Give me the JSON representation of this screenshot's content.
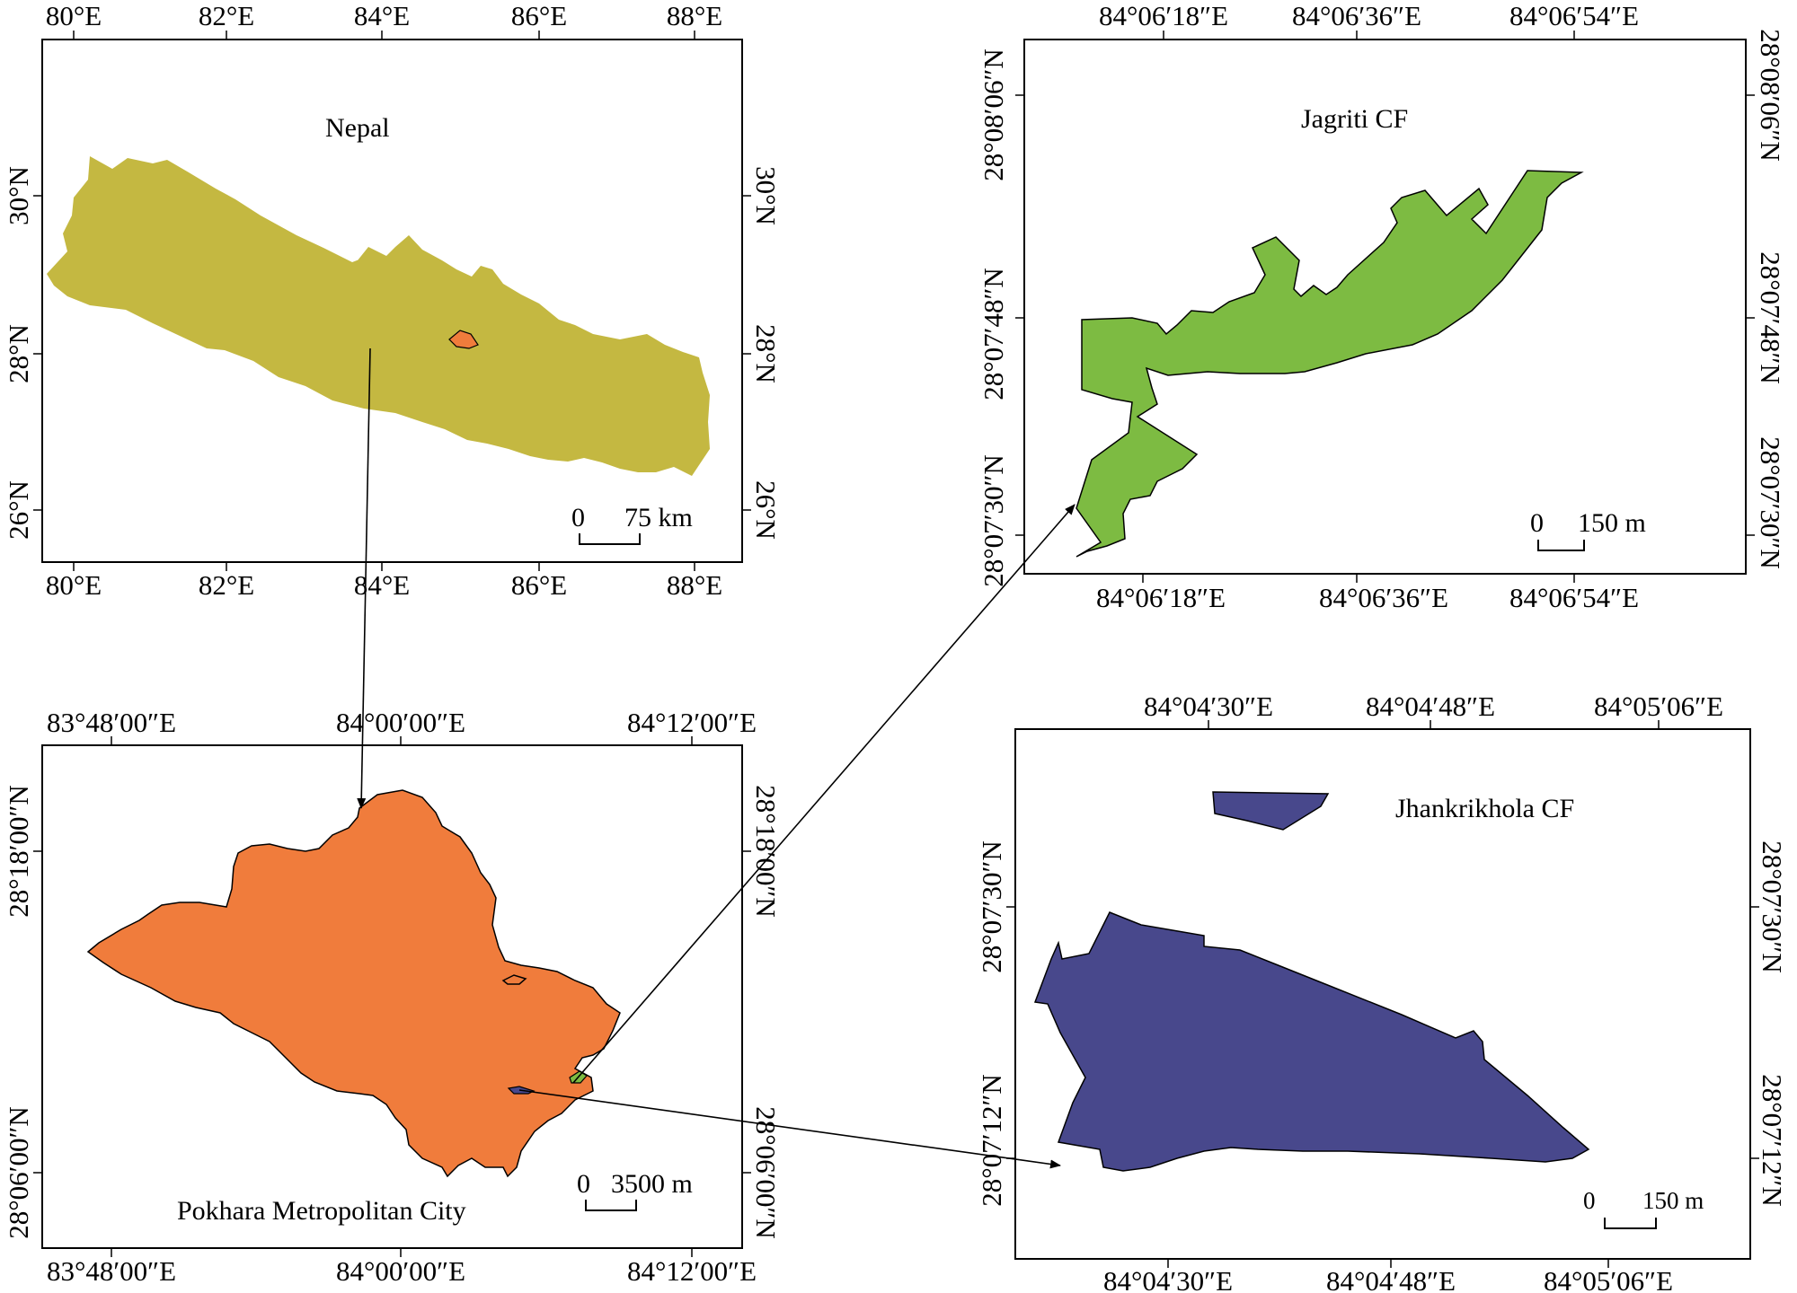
{
  "nepal": {
    "title": "Nepal",
    "x_ticks": [
      "80°E",
      "82°E",
      "84°E",
      "86°E",
      "88°E"
    ],
    "y_ticks": [
      "30°N",
      "28°N",
      "26°N"
    ],
    "scale": {
      "zero": "0",
      "value": "75 km"
    },
    "fill_color": "#C4B841"
  },
  "pokhara": {
    "title": "Pokhara Metropolitan City",
    "x_ticks": [
      "83°48′00″E",
      "84°00′00″E",
      "84°12′00″E"
    ],
    "y_ticks": [
      "28°18′00″N",
      "28°06′00″N"
    ],
    "scale": {
      "zero": "0",
      "value": "3500 m"
    },
    "fill_color": "#F07C3C"
  },
  "jagriti": {
    "title": "Jagriti CF",
    "x_ticks": [
      "84°06′18″E",
      "84°06′36″E",
      "84°06′54″E"
    ],
    "y_ticks": [
      "28°08′06″N",
      "28°07′48″N",
      "28°07′30″N"
    ],
    "scale": {
      "zero": "0",
      "value": "150 m"
    },
    "fill_color": "#7DBB42"
  },
  "jhankrikhola": {
    "title": "Jhankrikhola CF",
    "x_ticks": [
      "84°04′30″E",
      "84°04′48″E",
      "84°05′06″E"
    ],
    "y_ticks": [
      "28°07′30″N",
      "28°07′12″N"
    ],
    "scale": {
      "zero": "0",
      "value": "150 m"
    },
    "fill_color": "#48488C"
  }
}
